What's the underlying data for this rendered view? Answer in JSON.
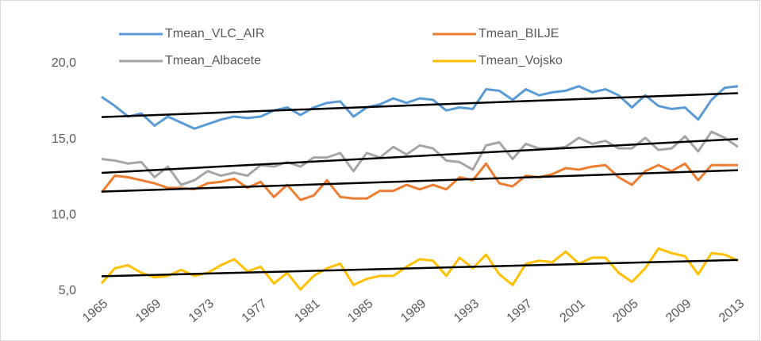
{
  "chart_data": {
    "type": "line",
    "x": [
      1965,
      1966,
      1967,
      1968,
      1969,
      1970,
      1971,
      1972,
      1973,
      1974,
      1975,
      1976,
      1977,
      1978,
      1979,
      1980,
      1981,
      1982,
      1983,
      1984,
      1985,
      1986,
      1987,
      1988,
      1989,
      1990,
      1991,
      1992,
      1993,
      1994,
      1995,
      1996,
      1997,
      1998,
      1999,
      2000,
      2001,
      2002,
      2003,
      2004,
      2005,
      2006,
      2007,
      2008,
      2009,
      2010,
      2011,
      2012,
      2013
    ],
    "xlim": [
      1965,
      2013
    ],
    "xticks": [
      1965,
      1969,
      1973,
      1977,
      1981,
      1985,
      1989,
      1993,
      1997,
      2001,
      2005,
      2009,
      2013
    ],
    "ylim": [
      5,
      20
    ],
    "yticks": [
      {
        "value": 5,
        "label": "5,0"
      },
      {
        "value": 10,
        "label": "10,0"
      },
      {
        "value": 15,
        "label": "15,0"
      },
      {
        "value": 20,
        "label": "20,0"
      }
    ],
    "trendline": true,
    "trendline_color": "#000000",
    "legend": "top",
    "series": [
      {
        "name": "Tmean_VLC_AIR",
        "color": "#5b9bd5",
        "values": [
          17.8,
          17.2,
          16.5,
          16.7,
          15.9,
          16.5,
          16.1,
          15.7,
          16.0,
          16.3,
          16.5,
          16.4,
          16.5,
          16.9,
          17.1,
          16.6,
          17.1,
          17.4,
          17.5,
          16.5,
          17.1,
          17.3,
          17.7,
          17.4,
          17.7,
          17.6,
          16.9,
          17.1,
          17.0,
          18.3,
          18.2,
          17.6,
          18.3,
          17.9,
          18.1,
          18.2,
          18.5,
          18.1,
          18.3,
          17.9,
          17.1,
          17.9,
          17.2,
          17.0,
          17.1,
          16.3,
          17.6,
          18.4,
          18.5
        ]
      },
      {
        "name": "Tmean_BILJE",
        "color": "#ed7d31",
        "values": [
          11.5,
          12.6,
          12.5,
          12.3,
          12.1,
          11.8,
          11.8,
          11.7,
          12.1,
          12.2,
          12.4,
          11.8,
          12.2,
          11.2,
          12.0,
          11.0,
          11.3,
          12.3,
          11.2,
          11.1,
          11.1,
          11.6,
          11.6,
          12.0,
          11.7,
          12.0,
          11.7,
          12.5,
          12.3,
          13.4,
          12.1,
          11.9,
          12.6,
          12.5,
          12.7,
          13.1,
          13.0,
          13.2,
          13.3,
          12.5,
          12.0,
          12.9,
          13.3,
          12.9,
          13.4,
          12.3,
          13.3,
          13.3,
          13.3
        ]
      },
      {
        "name": "Tmean_Albacete",
        "color": "#a5a5a5",
        "values": [
          13.7,
          13.6,
          13.4,
          13.5,
          12.5,
          13.2,
          12.0,
          12.3,
          12.9,
          12.6,
          12.8,
          12.6,
          13.3,
          13.2,
          13.5,
          13.2,
          13.8,
          13.8,
          14.1,
          12.9,
          14.1,
          13.8,
          14.5,
          14.0,
          14.6,
          14.4,
          13.6,
          13.5,
          13.0,
          14.6,
          14.8,
          13.7,
          14.7,
          14.4,
          14.4,
          14.5,
          15.1,
          14.7,
          14.9,
          14.4,
          14.4,
          15.1,
          14.3,
          14.4,
          15.2,
          14.2,
          15.5,
          15.1,
          14.5
        ]
      },
      {
        "name": "Tmean_Vojsko",
        "color": "#ffc000",
        "values": [
          5.5,
          6.5,
          6.7,
          6.2,
          5.9,
          6.0,
          6.4,
          6.0,
          6.2,
          6.7,
          7.1,
          6.3,
          6.6,
          5.5,
          6.2,
          5.1,
          6.0,
          6.5,
          6.8,
          5.4,
          5.8,
          6.0,
          6.0,
          6.6,
          7.1,
          7.0,
          6.0,
          7.2,
          6.5,
          7.4,
          6.1,
          5.4,
          6.8,
          7.0,
          6.9,
          7.6,
          6.8,
          7.2,
          7.2,
          6.2,
          5.6,
          6.5,
          7.8,
          7.5,
          7.3,
          6.1,
          7.5,
          7.4,
          7.0
        ]
      }
    ]
  }
}
